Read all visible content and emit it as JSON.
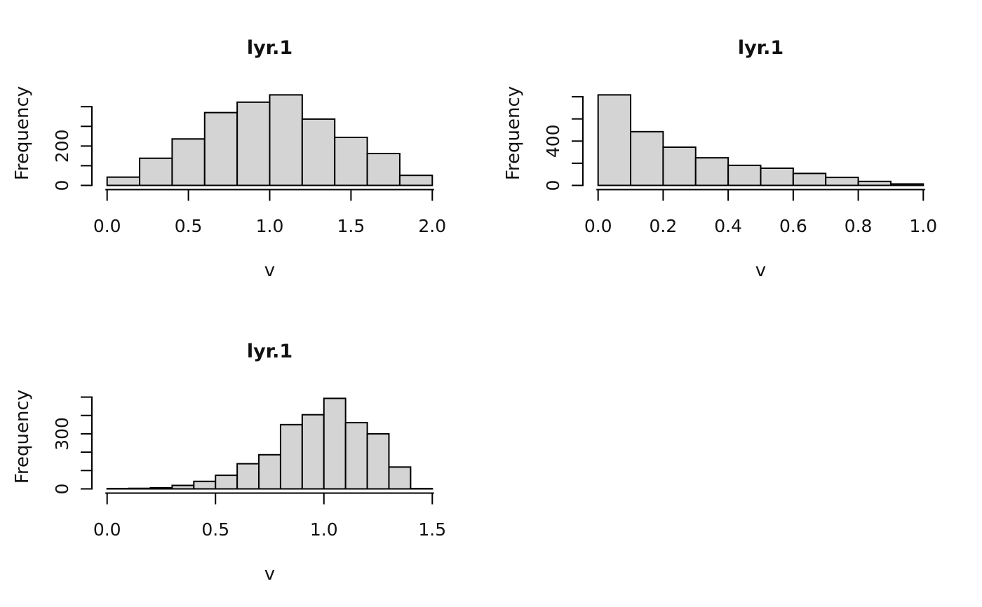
{
  "page": {
    "background": "#ffffff",
    "description": "Three base-R style histograms of raster layer lyr.1 arranged in a 2x2 grid; bottom-right cell empty"
  },
  "styles": {
    "bar_fill": "#d4d4d4",
    "stroke_color": "#000000",
    "text_color": "#111111"
  },
  "chart_data": [
    {
      "type": "bar",
      "subtype": "histogram",
      "title": "lyr.1",
      "xlabel": "v",
      "ylabel": "Frequency",
      "xlim": [
        0.0,
        2.0
      ],
      "bin_start": 0.0,
      "bin_width": 0.2,
      "counts": [
        42,
        138,
        236,
        370,
        423,
        460,
        337,
        244,
        162,
        51
      ],
      "x_ticks": [
        0.0,
        0.5,
        1.0,
        1.5,
        2.0
      ],
      "x_tick_labels": [
        "0.0",
        "0.5",
        "1.0",
        "1.5",
        "2.0"
      ],
      "y_ticks": [
        0,
        100,
        200,
        300,
        400
      ],
      "y_tick_labels": [
        "0",
        "",
        "200",
        "",
        ""
      ],
      "grid": false,
      "legend": null
    },
    {
      "type": "bar",
      "subtype": "histogram",
      "title": "lyr.1",
      "xlabel": "v",
      "ylabel": "Frequency",
      "xlim": [
        0.0,
        1.0
      ],
      "bin_start": 0.0,
      "bin_width": 0.1,
      "counts": [
        817,
        485,
        345,
        249,
        181,
        155,
        108,
        72,
        36,
        13
      ],
      "x_ticks": [
        0.0,
        0.2,
        0.4,
        0.6,
        0.8,
        1.0
      ],
      "x_tick_labels": [
        "0.0",
        "0.2",
        "0.4",
        "0.6",
        "0.8",
        "1.0"
      ],
      "y_ticks": [
        0,
        200,
        400,
        600,
        800
      ],
      "y_tick_labels": [
        "0",
        "",
        "400",
        "",
        ""
      ],
      "grid": false,
      "legend": null
    },
    {
      "type": "bar",
      "subtype": "histogram",
      "title": "lyr.1",
      "xlabel": "v",
      "ylabel": "Frequency",
      "xlim": [
        0.0,
        1.5
      ],
      "bin_start": 0.0,
      "bin_width": 0.1,
      "counts": [
        2,
        3,
        6,
        19,
        41,
        74,
        137,
        186,
        350,
        404,
        493,
        361,
        300,
        119,
        2
      ],
      "x_ticks": [
        0.0,
        0.5,
        1.0,
        1.5
      ],
      "x_tick_labels": [
        "0.0",
        "0.5",
        "1.0",
        "1.5"
      ],
      "y_ticks": [
        0,
        100,
        200,
        300,
        400,
        500
      ],
      "y_tick_labels": [
        "0",
        "",
        "",
        "300",
        "",
        ""
      ],
      "grid": false,
      "legend": null
    }
  ]
}
